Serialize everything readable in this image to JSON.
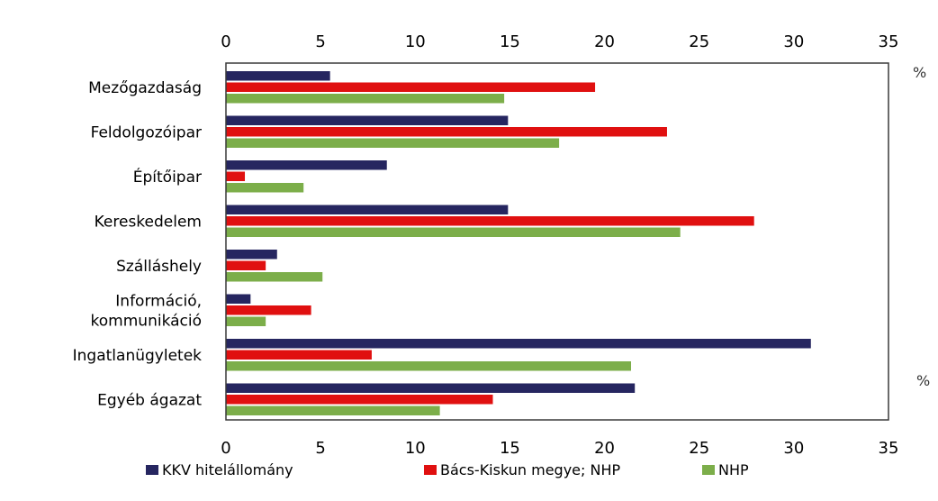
{
  "chart_data": {
    "type": "bar",
    "orientation": "horizontal",
    "categories": [
      [
        "Mezőgazdaság"
      ],
      [
        "Feldolgozóipar"
      ],
      [
        "Építőipar"
      ],
      [
        "Kereskedelem"
      ],
      [
        "Szálláshely"
      ],
      [
        "Információ,",
        "kommunikáció"
      ],
      [
        "Ingatlanügyletek"
      ],
      [
        "Egyéb ágazat"
      ]
    ],
    "series": [
      {
        "name": "KKV hitelállomány",
        "color": "#262660",
        "values": [
          5.5,
          14.9,
          8.5,
          14.9,
          2.7,
          1.3,
          30.9,
          21.6
        ]
      },
      {
        "name": "Bács-Kiskun megye; NHP",
        "color": "#e01010",
        "values": [
          19.5,
          23.3,
          1.0,
          27.9,
          2.1,
          4.5,
          7.7,
          14.1
        ]
      },
      {
        "name": "NHP",
        "color": "#7cae4a",
        "values": [
          14.7,
          17.6,
          4.1,
          24.0,
          5.1,
          2.1,
          21.4,
          11.3
        ]
      }
    ],
    "xlim": [
      0,
      35
    ],
    "ticks": [
      0,
      5,
      10,
      15,
      20,
      25,
      30,
      35
    ],
    "unit_top": "%",
    "unit_bottom": "%",
    "legend": "bottom",
    "grid": false
  }
}
